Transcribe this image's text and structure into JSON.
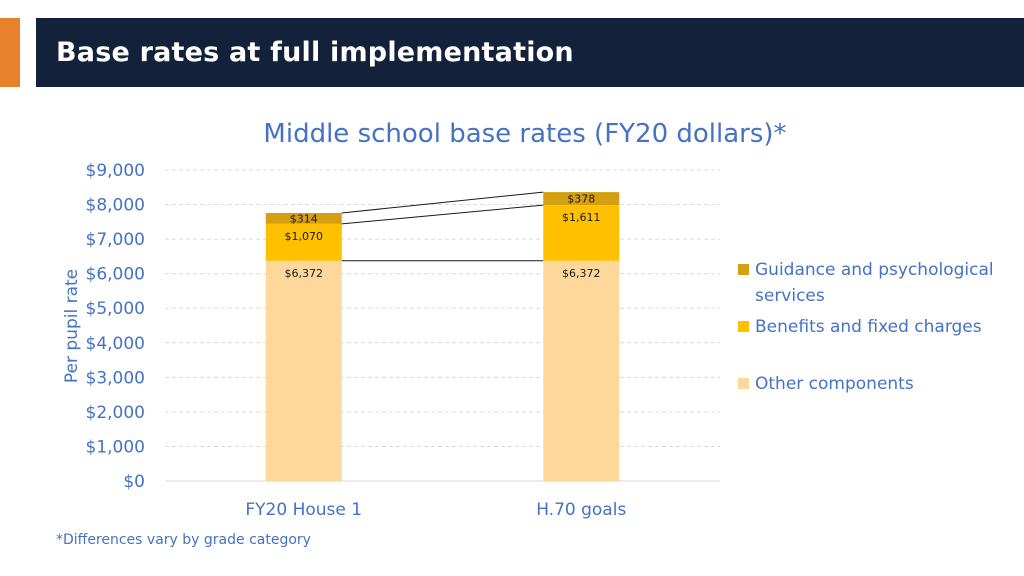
{
  "slide": {
    "title": "Base rates at full implementation",
    "footnote": "*Differences vary by grade category",
    "colors": {
      "title_bg": "#13213b",
      "accent": "#e8822a",
      "title_text": "#ffffff",
      "chart_text": "#4472c4",
      "footnote_text": "#4472c4"
    }
  },
  "chart_data": {
    "type": "bar",
    "stacked": true,
    "title": "Middle school base rates (FY20 dollars)*",
    "xlabel": "",
    "ylabel": "Per pupil rate",
    "ylim": [
      0,
      9000
    ],
    "yticks": [
      0,
      1000,
      2000,
      3000,
      4000,
      5000,
      6000,
      7000,
      8000,
      9000
    ],
    "ytick_labels": [
      "$0",
      "$1,000",
      "$2,000",
      "$3,000",
      "$4,000",
      "$5,000",
      "$6,000",
      "$7,000",
      "$8,000",
      "$9,000"
    ],
    "grid": true,
    "legend_position": "right",
    "categories": [
      "FY20 House 1",
      "H.70 goals"
    ],
    "series": [
      {
        "name": "Other components",
        "values": [
          6372,
          6372
        ],
        "labels": [
          "$6,372",
          "$6,372"
        ],
        "color": "#fdd89a"
      },
      {
        "name": "Benefits and fixed charges",
        "values": [
          1070,
          1611
        ],
        "labels": [
          "$1,070",
          "$1,611"
        ],
        "color": "#ffc000"
      },
      {
        "name": "Guidance and psychological services",
        "values": [
          314,
          378
        ],
        "labels": [
          "$314",
          "$378"
        ],
        "color": "#d4a012"
      }
    ],
    "legend_order": [
      "Guidance and psychological services",
      "Benefits and fixed charges",
      "Other components"
    ]
  }
}
